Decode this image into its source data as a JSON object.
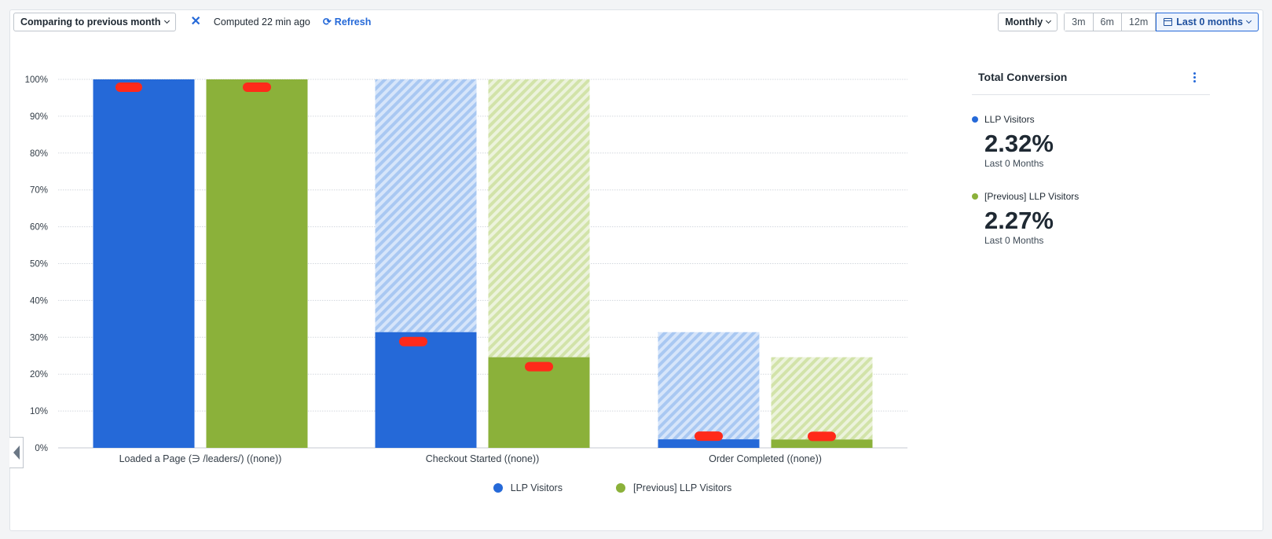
{
  "toolbar": {
    "compare_label": "Comparing to previous month",
    "computed_text": "Computed 22 min ago",
    "refresh_label": "Refresh",
    "interval_label": "Monthly",
    "ranges": [
      "3m",
      "6m",
      "12m"
    ],
    "active_range_label": "Last 0 months"
  },
  "colors": {
    "current": "#2569d8",
    "previous": "#8bb13a",
    "current_light": "#b9d3f5",
    "previous_light": "#dbe8bd",
    "redaction": "#ff2a1a"
  },
  "chart_data": {
    "type": "bar",
    "categories": [
      "Loaded a Page (∋ /leaders/) ((none))",
      "Checkout Started ((none))",
      "Order Completed ((none))"
    ],
    "ylim": [
      0,
      100
    ],
    "y_ticks": [
      "0%",
      "10%",
      "20%",
      "30%",
      "40%",
      "50%",
      "60%",
      "70%",
      "80%",
      "90%",
      "100%"
    ],
    "grid": true,
    "legend_position": "bottom",
    "series": [
      {
        "name": "LLP Visitors",
        "values": [
          100,
          31.4,
          2.32
        ],
        "dropoff_ghost": [
          null,
          100,
          31.4
        ]
      },
      {
        "name": "[Previous] LLP Visitors",
        "values": [
          100,
          24.6,
          2.27
        ],
        "dropoff_ghost": [
          null,
          100,
          24.6
        ]
      }
    ]
  },
  "side_panel": {
    "title": "Total Conversion",
    "metrics": [
      {
        "name": "LLP Visitors",
        "value": "2.32%",
        "sub": "Last 0 Months"
      },
      {
        "name": "[Previous] LLP Visitors",
        "value": "2.27%",
        "sub": "Last 0 Months"
      }
    ]
  }
}
